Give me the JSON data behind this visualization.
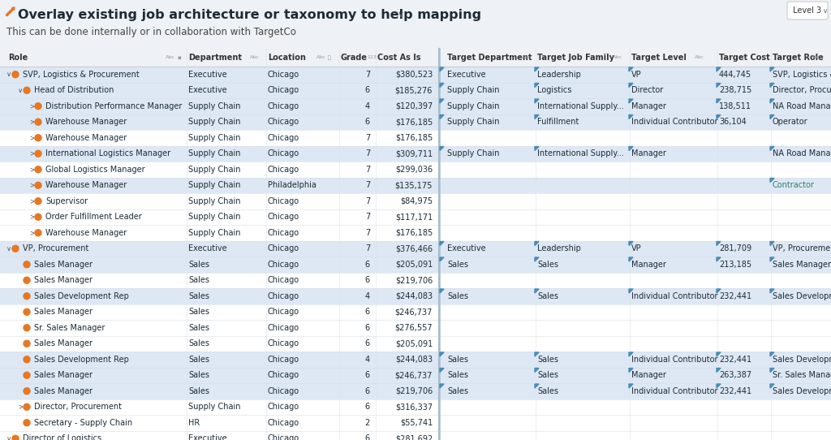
{
  "title": "Overlay existing job architecture or taxonomy to help mapping",
  "subtitle": "This can be done internally or in collaboration with TargetCo",
  "level_badge": "Level 3",
  "bg_color": "#eef1f5",
  "rows": [
    {
      "indent": 0,
      "collapse": "v",
      "icon": true,
      "role": "SVP, Logistics & Procurement",
      "dept": "Executive",
      "loc": "Chicago",
      "grade": "7",
      "cost": "$380,523",
      "tgt_dept": "Executive",
      "tgt_family": "Leadership",
      "tgt_level": "VP",
      "tgt_cost": "444,745",
      "tgt_role": "SVP, Logistics & Procurement",
      "highlight": true
    },
    {
      "indent": 1,
      "collapse": "v",
      "icon": true,
      "role": "Head of Distribution",
      "dept": "Executive",
      "loc": "Chicago",
      "grade": "6",
      "cost": "$185,276",
      "tgt_dept": "Supply Chain",
      "tgt_family": "Logistics",
      "tgt_level": "Director",
      "tgt_cost": "238,715",
      "tgt_role": "Director, Procurement",
      "highlight": true
    },
    {
      "indent": 2,
      "collapse": ">",
      "icon": true,
      "role": "Distribution Performance Manager",
      "dept": "Supply Chain",
      "loc": "Chicago",
      "grade": "4",
      "cost": "$120,397",
      "tgt_dept": "Supply Chain",
      "tgt_family": "International Supply...",
      "tgt_level": "Manager",
      "tgt_cost": "138,511",
      "tgt_role": "NA Road Manager",
      "highlight": true
    },
    {
      "indent": 2,
      "collapse": ">",
      "icon": true,
      "role": "Warehouse Manager",
      "dept": "Supply Chain",
      "loc": "Chicago",
      "grade": "6",
      "cost": "$176,185",
      "tgt_dept": "Supply Chain",
      "tgt_family": "Fulfillment",
      "tgt_level": "Individual Contributor",
      "tgt_cost": "36,104",
      "tgt_role": "Operator",
      "highlight": true
    },
    {
      "indent": 2,
      "collapse": ">",
      "icon": true,
      "role": "Warehouse Manager",
      "dept": "Supply Chain",
      "loc": "Chicago",
      "grade": "7",
      "cost": "$176,185",
      "tgt_dept": "",
      "tgt_family": "",
      "tgt_level": "",
      "tgt_cost": "",
      "tgt_role": "",
      "highlight": false
    },
    {
      "indent": 2,
      "collapse": ">",
      "icon": true,
      "role": "International Logistics Manager",
      "dept": "Supply Chain",
      "loc": "Chicago",
      "grade": "7",
      "cost": "$309,711",
      "tgt_dept": "Supply Chain",
      "tgt_family": "International Supply...",
      "tgt_level": "Manager",
      "tgt_cost": "",
      "tgt_role": "NA Road Manager",
      "highlight": true
    },
    {
      "indent": 2,
      "collapse": ">",
      "icon": true,
      "role": "Global Logistics Manager",
      "dept": "Supply Chain",
      "loc": "Chicago",
      "grade": "7",
      "cost": "$299,036",
      "tgt_dept": "",
      "tgt_family": "",
      "tgt_level": "",
      "tgt_cost": "",
      "tgt_role": "",
      "highlight": false
    },
    {
      "indent": 2,
      "collapse": ">",
      "icon": true,
      "role": "Warehouse Manager",
      "dept": "Supply Chain",
      "loc": "Philadelphia",
      "grade": "7",
      "cost": "$135,175",
      "tgt_dept": "",
      "tgt_family": "",
      "tgt_level": "",
      "tgt_cost": "",
      "tgt_role": "Contractor",
      "highlight": true
    },
    {
      "indent": 2,
      "collapse": ">",
      "icon": true,
      "role": "Supervisor",
      "dept": "Supply Chain",
      "loc": "Chicago",
      "grade": "7",
      "cost": "$84,975",
      "tgt_dept": "",
      "tgt_family": "",
      "tgt_level": "",
      "tgt_cost": "",
      "tgt_role": "",
      "highlight": false
    },
    {
      "indent": 2,
      "collapse": ">",
      "icon": true,
      "role": "Order Fulfillment Leader",
      "dept": "Supply Chain",
      "loc": "Chicago",
      "grade": "7",
      "cost": "$117,171",
      "tgt_dept": "",
      "tgt_family": "",
      "tgt_level": "",
      "tgt_cost": "",
      "tgt_role": "",
      "highlight": false
    },
    {
      "indent": 2,
      "collapse": ">",
      "icon": true,
      "role": "Warehouse Manager",
      "dept": "Supply Chain",
      "loc": "Chicago",
      "grade": "7",
      "cost": "$176,185",
      "tgt_dept": "",
      "tgt_family": "",
      "tgt_level": "",
      "tgt_cost": "",
      "tgt_role": "",
      "highlight": false
    },
    {
      "indent": 0,
      "collapse": "v",
      "icon": true,
      "role": "VP, Procurement",
      "dept": "Executive",
      "loc": "Chicago",
      "grade": "7",
      "cost": "$376,466",
      "tgt_dept": "Executive",
      "tgt_family": "Leadership",
      "tgt_level": "VP",
      "tgt_cost": "281,709",
      "tgt_role": "VP, Procurement",
      "highlight": true
    },
    {
      "indent": 1,
      "collapse": "",
      "icon": true,
      "role": "Sales Manager",
      "dept": "Sales",
      "loc": "Chicago",
      "grade": "6",
      "cost": "$205,091",
      "tgt_dept": "Sales",
      "tgt_family": "Sales",
      "tgt_level": "Manager",
      "tgt_cost": "213,185",
      "tgt_role": "Sales Manager",
      "highlight": true
    },
    {
      "indent": 1,
      "collapse": "",
      "icon": true,
      "role": "Sales Manager",
      "dept": "Sales",
      "loc": "Chicago",
      "grade": "6",
      "cost": "$219,706",
      "tgt_dept": "",
      "tgt_family": "",
      "tgt_level": "",
      "tgt_cost": "",
      "tgt_role": "",
      "highlight": false
    },
    {
      "indent": 1,
      "collapse": "",
      "icon": true,
      "role": "Sales Development Rep",
      "dept": "Sales",
      "loc": "Chicago",
      "grade": "4",
      "cost": "$244,083",
      "tgt_dept": "Sales",
      "tgt_family": "Sales",
      "tgt_level": "Individual Contributor",
      "tgt_cost": "232,441",
      "tgt_role": "Sales Development Rep",
      "highlight": true
    },
    {
      "indent": 1,
      "collapse": "",
      "icon": true,
      "role": "Sales Manager",
      "dept": "Sales",
      "loc": "Chicago",
      "grade": "6",
      "cost": "$246,737",
      "tgt_dept": "",
      "tgt_family": "",
      "tgt_level": "",
      "tgt_cost": "",
      "tgt_role": "",
      "highlight": false
    },
    {
      "indent": 1,
      "collapse": "",
      "icon": true,
      "role": "Sr. Sales Manager",
      "dept": "Sales",
      "loc": "Chicago",
      "grade": "6",
      "cost": "$276,557",
      "tgt_dept": "",
      "tgt_family": "",
      "tgt_level": "",
      "tgt_cost": "",
      "tgt_role": "",
      "highlight": false
    },
    {
      "indent": 1,
      "collapse": "",
      "icon": true,
      "role": "Sales Manager",
      "dept": "Sales",
      "loc": "Chicago",
      "grade": "6",
      "cost": "$205,091",
      "tgt_dept": "",
      "tgt_family": "",
      "tgt_level": "",
      "tgt_cost": "",
      "tgt_role": "",
      "highlight": false
    },
    {
      "indent": 1,
      "collapse": "",
      "icon": true,
      "role": "Sales Development Rep",
      "dept": "Sales",
      "loc": "Chicago",
      "grade": "4",
      "cost": "$244,083",
      "tgt_dept": "Sales",
      "tgt_family": "Sales",
      "tgt_level": "Individual Contributor",
      "tgt_cost": "232,441",
      "tgt_role": "Sales Development Rep",
      "highlight": true
    },
    {
      "indent": 1,
      "collapse": "",
      "icon": true,
      "role": "Sales Manager",
      "dept": "Sales",
      "loc": "Chicago",
      "grade": "6",
      "cost": "$246,737",
      "tgt_dept": "Sales",
      "tgt_family": "Sales",
      "tgt_level": "Manager",
      "tgt_cost": "263,387",
      "tgt_role": "Sr. Sales Manager",
      "highlight": true
    },
    {
      "indent": 1,
      "collapse": "",
      "icon": true,
      "role": "Sales Manager",
      "dept": "Sales",
      "loc": "Chicago",
      "grade": "6",
      "cost": "$219,706",
      "tgt_dept": "Sales",
      "tgt_family": "Sales",
      "tgt_level": "Individual Contributor",
      "tgt_cost": "232,441",
      "tgt_role": "Sales Development Rep",
      "highlight": true
    },
    {
      "indent": 1,
      "collapse": ">",
      "icon": true,
      "role": "Director, Procurement",
      "dept": "Supply Chain",
      "loc": "Chicago",
      "grade": "6",
      "cost": "$316,337",
      "tgt_dept": "",
      "tgt_family": "",
      "tgt_level": "",
      "tgt_cost": "",
      "tgt_role": "",
      "highlight": false
    },
    {
      "indent": 1,
      "collapse": "",
      "icon": true,
      "role": "Secretary - Supply Chain",
      "dept": "HR",
      "loc": "Chicago",
      "grade": "2",
      "cost": "$55,741",
      "tgt_dept": "",
      "tgt_family": "",
      "tgt_level": "",
      "tgt_cost": "",
      "tgt_role": "",
      "highlight": false
    },
    {
      "indent": 0,
      "collapse": "v",
      "icon": true,
      "role": "Director of Logistics",
      "dept": "Executive",
      "loc": "Chicago",
      "grade": "6",
      "cost": "$281,692",
      "tgt_dept": "",
      "tgt_family": "",
      "tgt_level": "",
      "tgt_cost": "",
      "tgt_role": "",
      "highlight": false
    }
  ]
}
